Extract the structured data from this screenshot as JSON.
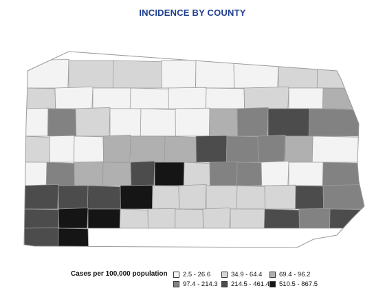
{
  "title": "INCIDENCE BY COUNTY",
  "legend": {
    "label": "Cases per 100,000 population",
    "classes": [
      {
        "range": "2.5 - 26.6",
        "color": "#f3f3f3"
      },
      {
        "range": "34.9 - 64.4",
        "color": "#d6d6d6"
      },
      {
        "range": "69.4 - 96.2",
        "color": "#b0b0b0"
      },
      {
        "range": "97.4 - 214.3",
        "color": "#828282"
      },
      {
        "range": "214.5 - 461.4",
        "color": "#4c4c4c"
      },
      {
        "range": "510.5 - 867.5",
        "color": "#151515"
      }
    ]
  },
  "map": {
    "state": "Pennsylvania",
    "county_classes": [
      0,
      1,
      1,
      0,
      0,
      0,
      1,
      1,
      1,
      0,
      0,
      0,
      0,
      0,
      1,
      0,
      2,
      0,
      3,
      1,
      0,
      0,
      0,
      2,
      3,
      4,
      3,
      1,
      0,
      0,
      2,
      2,
      2,
      4,
      3,
      3,
      2,
      0,
      0,
      3,
      2,
      2,
      4,
      5,
      1,
      3,
      3,
      0,
      0,
      3,
      4,
      4,
      4,
      5,
      1,
      1,
      1,
      1,
      1,
      4,
      3,
      4,
      5,
      5,
      1,
      1,
      1,
      1,
      1,
      4,
      3,
      4,
      4,
      5
    ]
  }
}
